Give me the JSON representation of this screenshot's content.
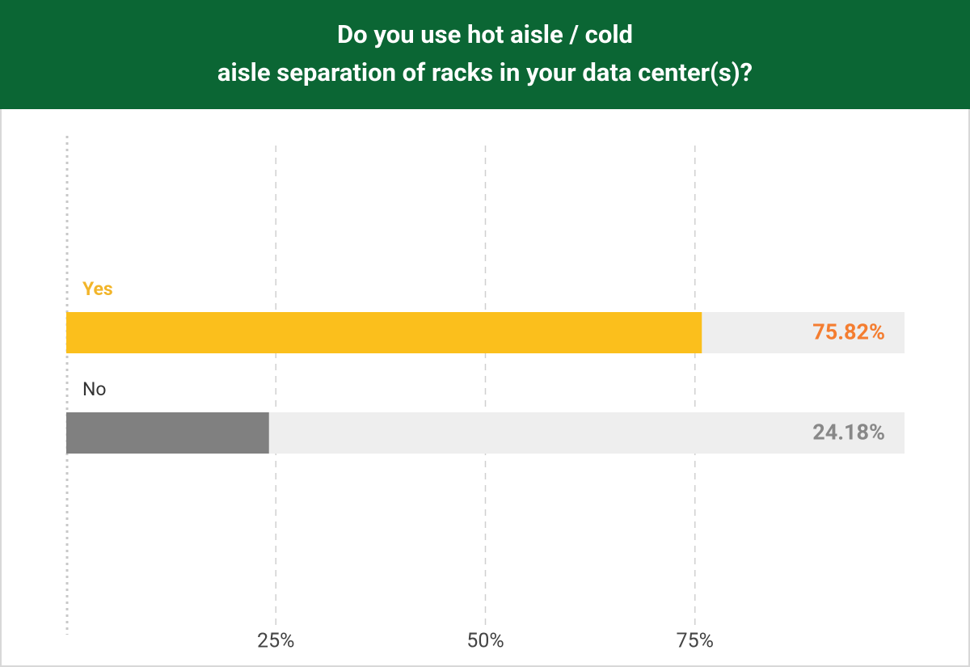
{
  "chart_data": {
    "type": "hbar",
    "title": "Do you use hot aisle / cold aisle separation of racks in your data center(s)?",
    "categories": [
      "Yes",
      "No"
    ],
    "values": [
      75.82,
      24.18
    ],
    "value_labels": [
      "75.82%",
      "24.18%"
    ],
    "colors": [
      "#fbbf1c",
      "#808080"
    ],
    "category_label_colors": [
      "#f2b52a",
      "#333333"
    ],
    "value_label_colors": [
      "#f47d30",
      "#888888"
    ],
    "track_color": "#eeeeee",
    "xlim": [
      0,
      100
    ],
    "xticks": [
      {
        "value": 25,
        "label": "25%"
      },
      {
        "value": 50,
        "label": "50%"
      },
      {
        "value": 75,
        "label": "75%"
      }
    ],
    "grid": true
  }
}
